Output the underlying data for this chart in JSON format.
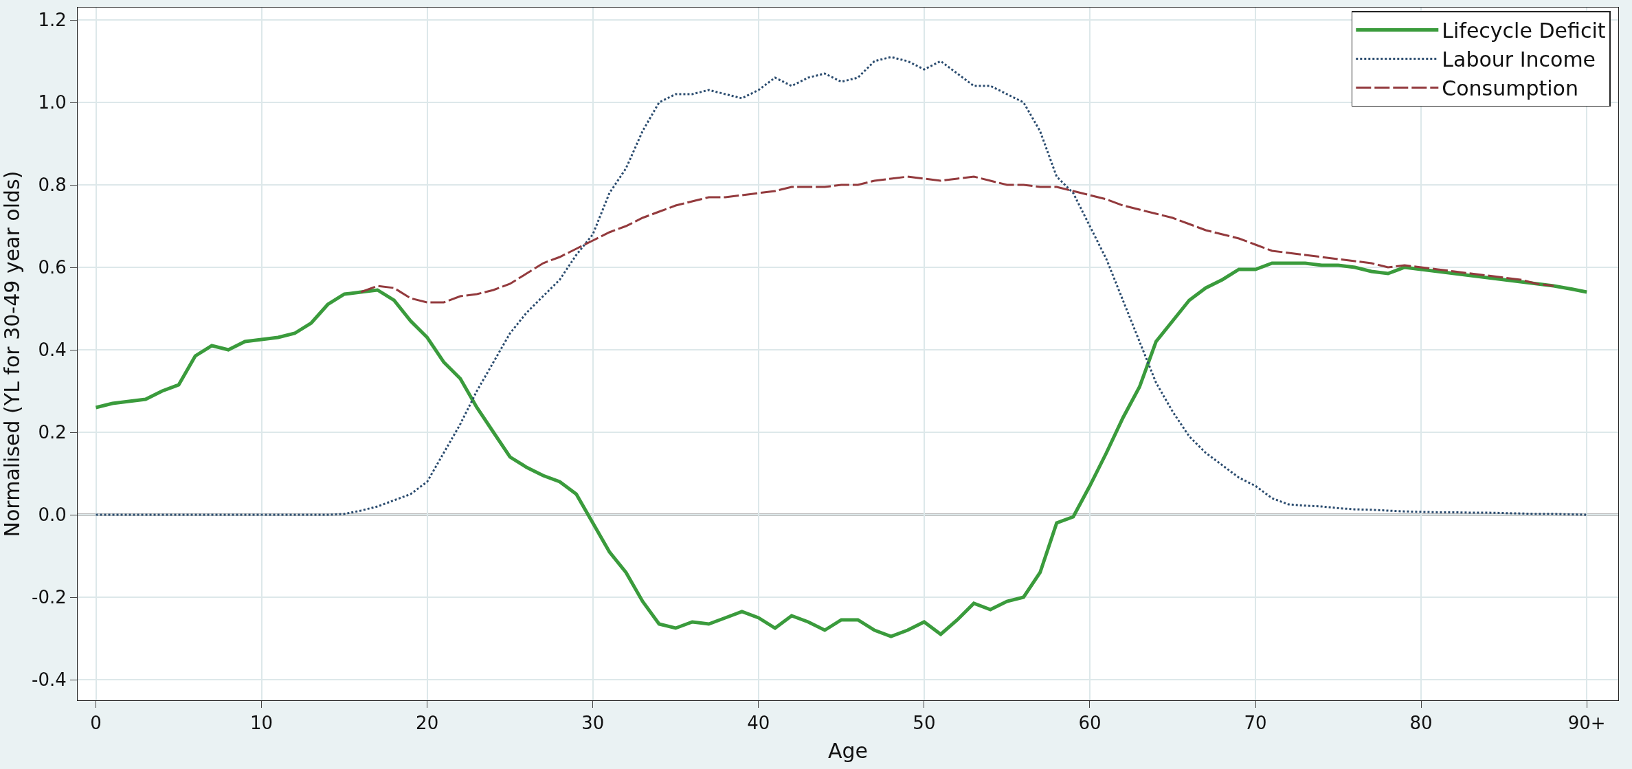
{
  "chart_data": {
    "type": "line",
    "xlabel": "Age",
    "ylabel": "Normalised (YL for 30-49 year olds)",
    "x": [
      0,
      1,
      2,
      3,
      4,
      5,
      6,
      7,
      8,
      9,
      10,
      11,
      12,
      13,
      14,
      15,
      16,
      17,
      18,
      19,
      20,
      21,
      22,
      23,
      24,
      25,
      26,
      27,
      28,
      29,
      30,
      31,
      32,
      33,
      34,
      35,
      36,
      37,
      38,
      39,
      40,
      41,
      42,
      43,
      44,
      45,
      46,
      47,
      48,
      49,
      50,
      51,
      52,
      53,
      54,
      55,
      56,
      57,
      58,
      59,
      60,
      61,
      62,
      63,
      64,
      65,
      66,
      67,
      68,
      69,
      70,
      71,
      72,
      73,
      74,
      75,
      76,
      77,
      78,
      79,
      80,
      81,
      82,
      83,
      84,
      85,
      86,
      87,
      88,
      89,
      90
    ],
    "series": [
      {
        "name": "Consumption",
        "color": "#933a3d",
        "line_style": "dashed",
        "values": [
          null,
          null,
          null,
          null,
          null,
          null,
          null,
          null,
          null,
          null,
          null,
          null,
          null,
          null,
          null,
          null,
          0.54,
          0.555,
          0.55,
          0.525,
          0.515,
          0.515,
          0.53,
          0.535,
          0.545,
          0.56,
          0.585,
          0.61,
          0.625,
          0.645,
          0.665,
          0.685,
          0.7,
          0.72,
          0.735,
          0.75,
          0.76,
          0.77,
          0.77,
          0.775,
          0.78,
          0.785,
          0.795,
          0.795,
          0.795,
          0.8,
          0.8,
          0.81,
          0.815,
          0.82,
          0.815,
          0.81,
          0.815,
          0.82,
          0.81,
          0.8,
          0.8,
          0.795,
          0.795,
          0.785,
          0.775,
          0.765,
          0.75,
          0.74,
          0.73,
          0.72,
          0.705,
          0.69,
          0.68,
          0.67,
          0.655,
          0.64,
          0.635,
          0.63,
          0.625,
          0.62,
          0.615,
          0.61,
          0.6,
          0.605,
          0.6,
          0.595,
          0.59,
          0.585,
          0.58,
          0.575,
          0.57,
          0.56,
          0.555,
          null,
          null
        ]
      },
      {
        "name": "Labour Income",
        "color": "#2b4c6f",
        "line_style": "dotted",
        "values": [
          0,
          0,
          0,
          0,
          0,
          0,
          0,
          0,
          0,
          0,
          0,
          0,
          0,
          0,
          0,
          0.002,
          0.01,
          0.02,
          0.035,
          0.05,
          0.08,
          0.15,
          0.22,
          0.3,
          0.37,
          0.44,
          0.49,
          0.53,
          0.57,
          0.63,
          0.68,
          0.78,
          0.84,
          0.93,
          1.0,
          1.02,
          1.02,
          1.03,
          1.02,
          1.01,
          1.03,
          1.06,
          1.04,
          1.06,
          1.07,
          1.05,
          1.06,
          1.1,
          1.11,
          1.1,
          1.08,
          1.1,
          1.07,
          1.04,
          1.04,
          1.02,
          1.0,
          0.93,
          0.82,
          0.78,
          0.7,
          0.62,
          0.52,
          0.42,
          0.32,
          0.25,
          0.19,
          0.15,
          0.12,
          0.09,
          0.07,
          0.04,
          0.025,
          0.022,
          0.02,
          0.016,
          0.013,
          0.012,
          0.01,
          0.008,
          0.007,
          0.006,
          0.006,
          0.005,
          0.005,
          0.004,
          0.003,
          0.002,
          0.002,
          0.001,
          0
        ]
      },
      {
        "name": "Lifecycle Deficit",
        "color": "#3a9b3c",
        "line_style": "solid",
        "values": [
          0.26,
          0.27,
          0.275,
          0.28,
          0.3,
          0.315,
          0.385,
          0.41,
          0.4,
          0.42,
          0.425,
          0.43,
          0.44,
          0.465,
          0.51,
          0.535,
          0.54,
          0.545,
          0.52,
          0.47,
          0.43,
          0.37,
          0.33,
          0.26,
          0.2,
          0.14,
          0.115,
          0.095,
          0.08,
          0.05,
          -0.02,
          -0.09,
          -0.14,
          -0.21,
          -0.265,
          -0.275,
          -0.26,
          -0.265,
          -0.25,
          -0.235,
          -0.25,
          -0.275,
          -0.245,
          -0.26,
          -0.28,
          -0.255,
          -0.255,
          -0.28,
          -0.295,
          -0.28,
          -0.26,
          -0.29,
          -0.255,
          -0.215,
          -0.23,
          -0.21,
          -0.2,
          -0.14,
          -0.02,
          -0.005,
          0.07,
          0.15,
          0.235,
          0.31,
          0.42,
          0.47,
          0.52,
          0.55,
          0.57,
          0.595,
          0.595,
          0.61,
          0.61,
          0.61,
          0.605,
          0.605,
          0.6,
          0.59,
          0.585,
          0.6,
          0.595,
          0.59,
          0.585,
          0.58,
          0.575,
          0.57,
          0.565,
          0.56,
          0.555,
          0.548,
          0.54
        ]
      }
    ],
    "xlim": [
      -1.1,
      91.9
    ],
    "ylim": [
      -0.45,
      1.23
    ],
    "xticks": [
      0,
      10,
      20,
      30,
      40,
      50,
      60,
      70,
      80,
      {
        "value": 90,
        "label": "90+"
      }
    ],
    "yticks": [
      {
        "value": -0.4,
        "label": "-0.4"
      },
      {
        "value": -0.2,
        "label": "-0.2"
      },
      {
        "value": 0,
        "label": "0.0"
      },
      {
        "value": 0.2,
        "label": "0.2"
      },
      {
        "value": 0.4,
        "label": "0.4"
      },
      {
        "value": 0.6,
        "label": "0.6"
      },
      {
        "value": 0.8,
        "label": "0.8"
      },
      {
        "value": 1.0,
        "label": "1.0"
      },
      {
        "value": 1.2,
        "label": "1.2"
      }
    ],
    "ref_lines": [
      {
        "axis": "y",
        "value": 0,
        "color": "#b8b8b8"
      }
    ],
    "grid": true,
    "legend": "top right",
    "marker": "none"
  }
}
